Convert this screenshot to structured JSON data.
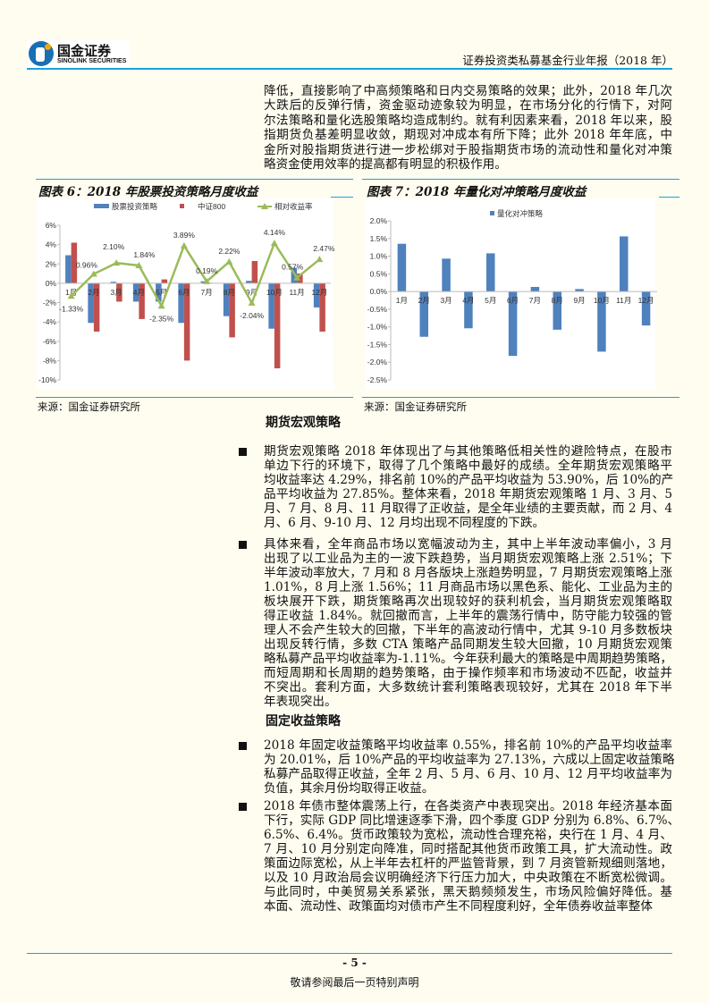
{
  "header": {
    "logo_cn": "国金证券",
    "logo_en": "SINOLINK SECURITIES",
    "report_title": "证券投资类私募基金行业年报（2018 年）"
  },
  "intro": {
    "lines": [
      "降低，直接影响了中高频策略和日内交易策略的效果；此外，2018 年几次",
      "大跌后的反弹行情，资金驱动迹象较为明显，在市场分化的行情下，对阿",
      "尔法策略和量化选股策略均造成制约。就有利因素来看，2018 年以来，股",
      "指期货负基差明显收敛，期现对冲成本有所下降；此外 2018 年年底，中",
      "金所对股指期货进行进一步松绑对于股指期货市场的流动性和量化对冲策",
      "略资金使用效率的提高都有明显的积极作用。"
    ]
  },
  "chart_data": [
    {
      "type": "bar+line",
      "title": "图表 6：2018 年股票投资策略月度收益",
      "source": "来源：国金证券研究所",
      "categories": [
        "1月",
        "2月",
        "3月",
        "4月",
        "5月",
        "6月",
        "7月",
        "8月",
        "9月",
        "10月",
        "11月",
        "12月"
      ],
      "ylim": [
        -10,
        6
      ],
      "yticks": [
        "6%",
        "4%",
        "2%",
        "0%",
        "-2%",
        "-4%",
        "-6%",
        "-8%",
        "-10%"
      ],
      "legend_position": "top",
      "series": [
        {
          "name": "股票投资策略",
          "type": "bar",
          "color": "#4f81bd",
          "values": [
            2.9,
            -4.1,
            0.15,
            -1.9,
            -1.9,
            -4.1,
            0.2,
            -3.4,
            0.25,
            -4.7,
            1.6,
            -2.5
          ]
        },
        {
          "name": "中证800",
          "type": "bar",
          "color": "#c0504d",
          "values": [
            4.2,
            -5.0,
            -1.9,
            -3.7,
            0.4,
            -8.0,
            0.05,
            -5.6,
            2.3,
            -8.8,
            1.0,
            -5.0
          ]
        },
        {
          "name": "相对收益率",
          "type": "line",
          "color": "#9bbb59",
          "values": [
            -1.33,
            0.96,
            2.1,
            1.84,
            -2.35,
            3.89,
            0.19,
            2.22,
            -2.04,
            4.14,
            0.57,
            2.47
          ],
          "labels": [
            "-1.33%",
            "0.96%",
            "2.10%",
            "1.84%",
            "-2.35%",
            "3.89%",
            "0.19%",
            "2.22%",
            "-2.04%",
            "4.14%",
            "0.57%",
            "2.47%"
          ]
        }
      ]
    },
    {
      "type": "bar",
      "title": "图表 7：2018 年量化对冲策略月度收益",
      "source": "来源：国金证券研究所",
      "categories": [
        "1月",
        "2月",
        "3月",
        "4月",
        "5月",
        "6月",
        "7月",
        "8月",
        "9月",
        "10月",
        "11月",
        "12月"
      ],
      "ylim": [
        -2.5,
        2.0
      ],
      "yticks": [
        "2.0%",
        "1.5%",
        "1.0%",
        "0.5%",
        "0.0%",
        "-0.5%",
        "-1.0%",
        "-1.5%",
        "-2.0%",
        "-2.5%"
      ],
      "legend_position": "top",
      "series": [
        {
          "name": "量化对冲策略",
          "type": "bar",
          "color": "#4f81bd",
          "values": [
            1.35,
            -1.28,
            0.93,
            -1.04,
            1.08,
            -1.82,
            0.13,
            -1.08,
            0.07,
            -1.7,
            1.56,
            -0.96
          ]
        }
      ]
    }
  ],
  "sections": [
    {
      "heading": "期货宏观策略",
      "bullets": [
        [
          "期货宏观策略 2018 年体现出了与其他策略低相关性的避险特点，在股市",
          "单边下行的环境下，取得了几个策略中最好的成绩。全年期货宏观策略平",
          "均收益率达 4.29%，排名前 10%的产品平均收益为 53.90%，后 10%的产",
          "品平均收益为 27.85%。整体来看，2018 年期货宏观策略 1 月、3 月、5",
          "月、7 月、8 月、11 月取得了正收益，是全年业绩的主要贡献，而 2 月、4",
          "月、6 月、9-10 月、12 月均出现不同程度的下跌。"
        ],
        [
          "具体来看，全年商品市场以宽幅波动为主，其中上半年波动率偏小，3 月",
          "出现了以工业品为主的一波下跌趋势，当月期货宏观策略上涨 2.51%；下",
          "半年波动率放大，7 月和 8 月各版块上涨趋势明显，7 月期货宏观策略上涨",
          "1.01%，8 月上涨 1.56%；11 月商品市场以黑色系、能化、工业品为主的",
          "板块展开下跌，期货策略再次出现较好的获利机会，当月期货宏观策略取",
          "得正收益 1.84%。就回撤而言，上半年的震荡行情中，防守能力较强的管",
          "理人不会产生较大的回撤，下半年的高波动行情中，尤其 9-10 月多数板块",
          "出现反转行情，多数 CTA 策略产品同期发生较大回撤，10 月期货宏观策",
          "略私募产品平均收益率为-1.11%。今年获利最大的策略是中周期趋势策略，",
          "而短周期和长周期的趋势策略，由于操作频率和市场波动不匹配，收益并",
          "不突出。套利方面，大多数统计套利策略表现较好，尤其在 2018 年下半",
          "年表现突出。"
        ]
      ]
    },
    {
      "heading": "固定收益策略",
      "bullets": [
        [
          "2018 年固定收益策略平均收益率 0.55%，排名前 10%的产品平均收益率",
          "为 20.01%，后 10%产品的平均收益率为 27.13%，六成以上固定收益策略",
          "私募产品取得正收益，全年 2 月、5 月、6 月、10 月、12 月平均收益率为",
          "负值，其余月份均取得正收益。"
        ],
        [
          "2018 年债市整体震荡上行，在各类资产中表现突出。2018 年经济基本面",
          "下行，实际 GDP 同比增速逐季下滑，四个季度 GDP 分别为 6.8%、6.7%、",
          "6.5%、6.4%。货币政策较为宽松，流动性合理充裕，央行在 1 月、4 月、",
          "7 月、10 月分别定向降准，同时搭配其他货币政策工具，扩大流动性。政",
          "策面边际宽松，从上半年去杠杆的严监管背景，到 7 月资管新规细则落地，",
          "以及 10 月政治局会议明确经济下行压力加大，中央政策在不断宽松微调。",
          "与此同时，中美贸易关系紧张，黑天鹅频频发生，市场风险偏好降低。基",
          "本面、流动性、政策面均对债市产生不同程度利好，全年债券收益率整体"
        ]
      ]
    }
  ],
  "footer": {
    "page": "- 5 -",
    "note": "敬请参阅最后一页特别声明"
  }
}
